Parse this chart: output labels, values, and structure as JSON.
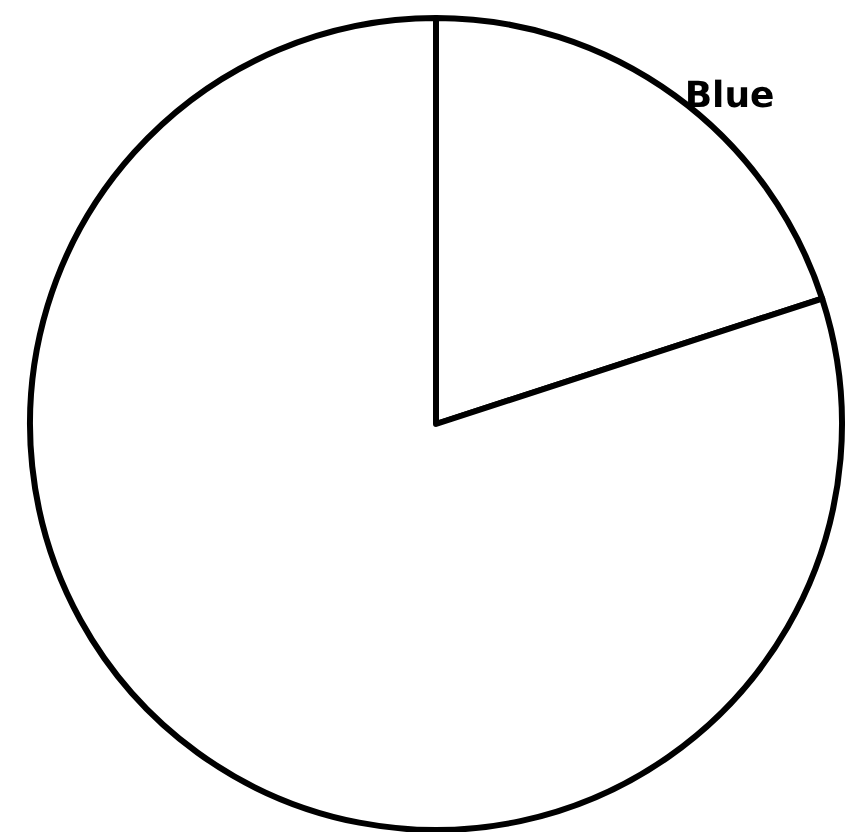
{
  "chart_data": {
    "type": "pie",
    "categories": [
      "Blue",
      null
    ],
    "values": [
      20,
      80
    ],
    "colors": [
      "#ffffff",
      "#ffffff"
    ]
  }
}
